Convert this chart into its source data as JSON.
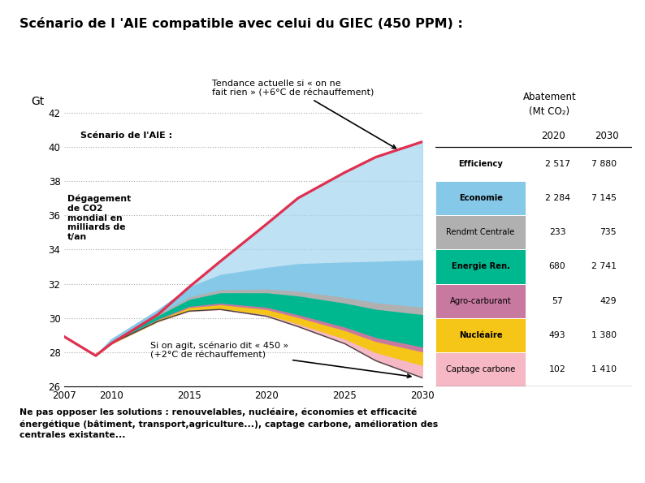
{
  "title": "Scénario de l 'AIE compatible avec celui du GIEC (450 PPM) :",
  "years": [
    2007,
    2009,
    2010,
    2013,
    2015,
    2017,
    2020,
    2022,
    2025,
    2027,
    2030
  ],
  "red_line": [
    28.9,
    27.8,
    28.5,
    30.2,
    31.8,
    33.3,
    35.5,
    37.0,
    38.5,
    39.4,
    40.3
  ],
  "base_line": [
    28.9,
    27.8,
    28.5,
    29.8,
    30.4,
    30.5,
    30.1,
    29.5,
    28.5,
    27.5,
    26.5
  ],
  "captage": [
    0.0,
    0.0,
    0.0,
    0.02,
    0.05,
    0.08,
    0.12,
    0.18,
    0.3,
    0.5,
    0.75
  ],
  "nucleaire": [
    0.0,
    0.0,
    0.05,
    0.1,
    0.18,
    0.22,
    0.3,
    0.38,
    0.5,
    0.65,
    0.8
  ],
  "agro": [
    0.0,
    0.0,
    0.02,
    0.05,
    0.08,
    0.1,
    0.13,
    0.16,
    0.2,
    0.24,
    0.28
  ],
  "energie": [
    0.0,
    0.0,
    0.08,
    0.2,
    0.4,
    0.6,
    0.85,
    1.1,
    1.4,
    1.65,
    1.9
  ],
  "rendmt": [
    0.0,
    0.0,
    0.03,
    0.07,
    0.14,
    0.18,
    0.22,
    0.27,
    0.33,
    0.38,
    0.43
  ],
  "economie": [
    0.0,
    0.0,
    0.07,
    0.22,
    0.52,
    0.82,
    1.2,
    1.55,
    2.0,
    2.35,
    2.7
  ],
  "color_captage": "#f5b8c4",
  "color_nucleaire": "#f5c518",
  "color_agro": "#c879a0",
  "color_energie": "#00b890",
  "color_rendmt": "#b0b0b0",
  "color_economie": "#85c8e8",
  "color_red_line": "#e03050",
  "color_blue_fill": "#a8d8f0",
  "ylabel": "Gt",
  "ylim_min": 26,
  "ylim_max": 43.5,
  "yticks": [
    26,
    28,
    30,
    32,
    34,
    36,
    38,
    40,
    42
  ],
  "xticks": [
    2007,
    2010,
    2015,
    2020,
    2025,
    2030
  ],
  "footnote_line1": "Ne pas opposer les solutions : renouvelables, nucléaire, économies et efficacité",
  "footnote_line2": "énergétique (bâtiment, transport,agriculture...), captage carbone, amélioration des",
  "footnote_line3": "centrales existante...",
  "table_header1": "Abatement",
  "table_header2": "(Mt CO₂)",
  "table_col1": "2020",
  "table_col2": "2030",
  "table_rows": [
    {
      "label": "Efficiency",
      "color": "#ffffff",
      "val2020": "2 517",
      "val2030": "7 880",
      "bold": true,
      "text_dark": true
    },
    {
      "label": "Economie",
      "color": "#85c8e8",
      "val2020": "2 284",
      "val2030": "7 145",
      "bold": true,
      "text_dark": true
    },
    {
      "label": "Rendmt Centrale",
      "color": "#b0b0b0",
      "val2020": "233",
      "val2030": "735",
      "bold": false,
      "text_dark": true
    },
    {
      "label": "Energie Ren.",
      "color": "#00b890",
      "val2020": "680",
      "val2030": "2 741",
      "bold": true,
      "text_dark": true
    },
    {
      "label": "Agro-carburant",
      "color": "#c879a0",
      "val2020": "57",
      "val2030": "429",
      "bold": false,
      "text_dark": true
    },
    {
      "label": "Nucléaire",
      "color": "#f5c518",
      "val2020": "493",
      "val2030": "1 380",
      "bold": true,
      "text_dark": true
    },
    {
      "label": "Captage carbone",
      "color": "#f5b8c4",
      "val2020": "102",
      "val2030": "1 410",
      "bold": false,
      "text_dark": true
    }
  ]
}
